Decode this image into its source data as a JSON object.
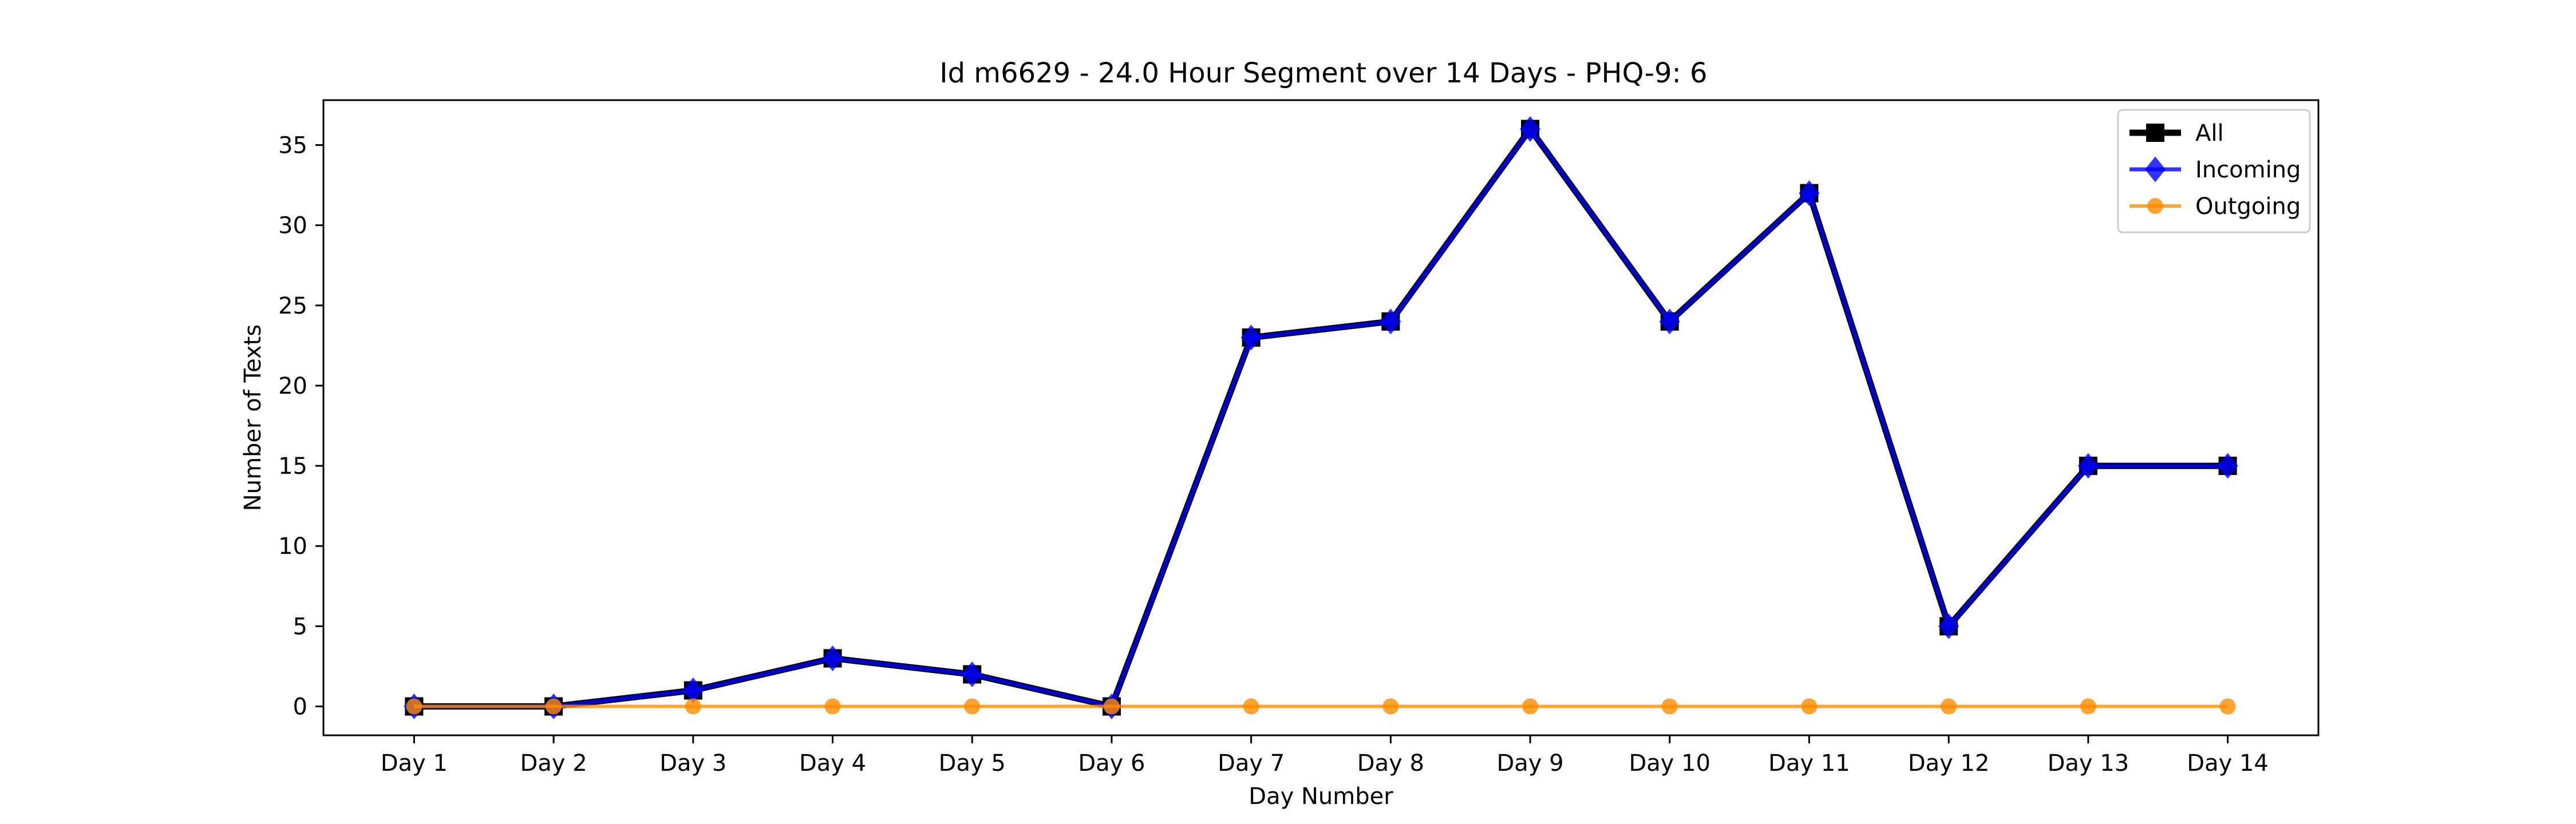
{
  "chart_data": {
    "type": "line",
    "title": "Id m6629 - 24.0 Hour Segment over 14 Days - PHQ-9: 6",
    "xlabel": "Day Number",
    "ylabel": "Number of Texts",
    "categories": [
      "Day 1",
      "Day 2",
      "Day 3",
      "Day 4",
      "Day 5",
      "Day 6",
      "Day 7",
      "Day 8",
      "Day 9",
      "Day 10",
      "Day 11",
      "Day 12",
      "Day 13",
      "Day 14"
    ],
    "yticks": [
      0,
      5,
      10,
      15,
      20,
      25,
      30,
      35
    ],
    "ylim": [
      -1.8,
      37.8
    ],
    "grid": false,
    "legend_position": "top-right",
    "series": [
      {
        "name": "All",
        "color": "#000000",
        "marker": "square",
        "values": [
          0,
          0,
          1,
          3,
          2,
          0,
          23,
          24,
          36,
          24,
          32,
          5,
          15,
          15
        ]
      },
      {
        "name": "Incoming",
        "color": "#0000ff",
        "marker": "diamond",
        "values": [
          0,
          0,
          1,
          3,
          2,
          0,
          23,
          24,
          36,
          24,
          32,
          5,
          15,
          15
        ]
      },
      {
        "name": "Outgoing",
        "color": "#ff8c00",
        "marker": "circle",
        "values": [
          0,
          0,
          0,
          0,
          0,
          0,
          0,
          0,
          0,
          0,
          0,
          0,
          0,
          0
        ]
      }
    ]
  }
}
